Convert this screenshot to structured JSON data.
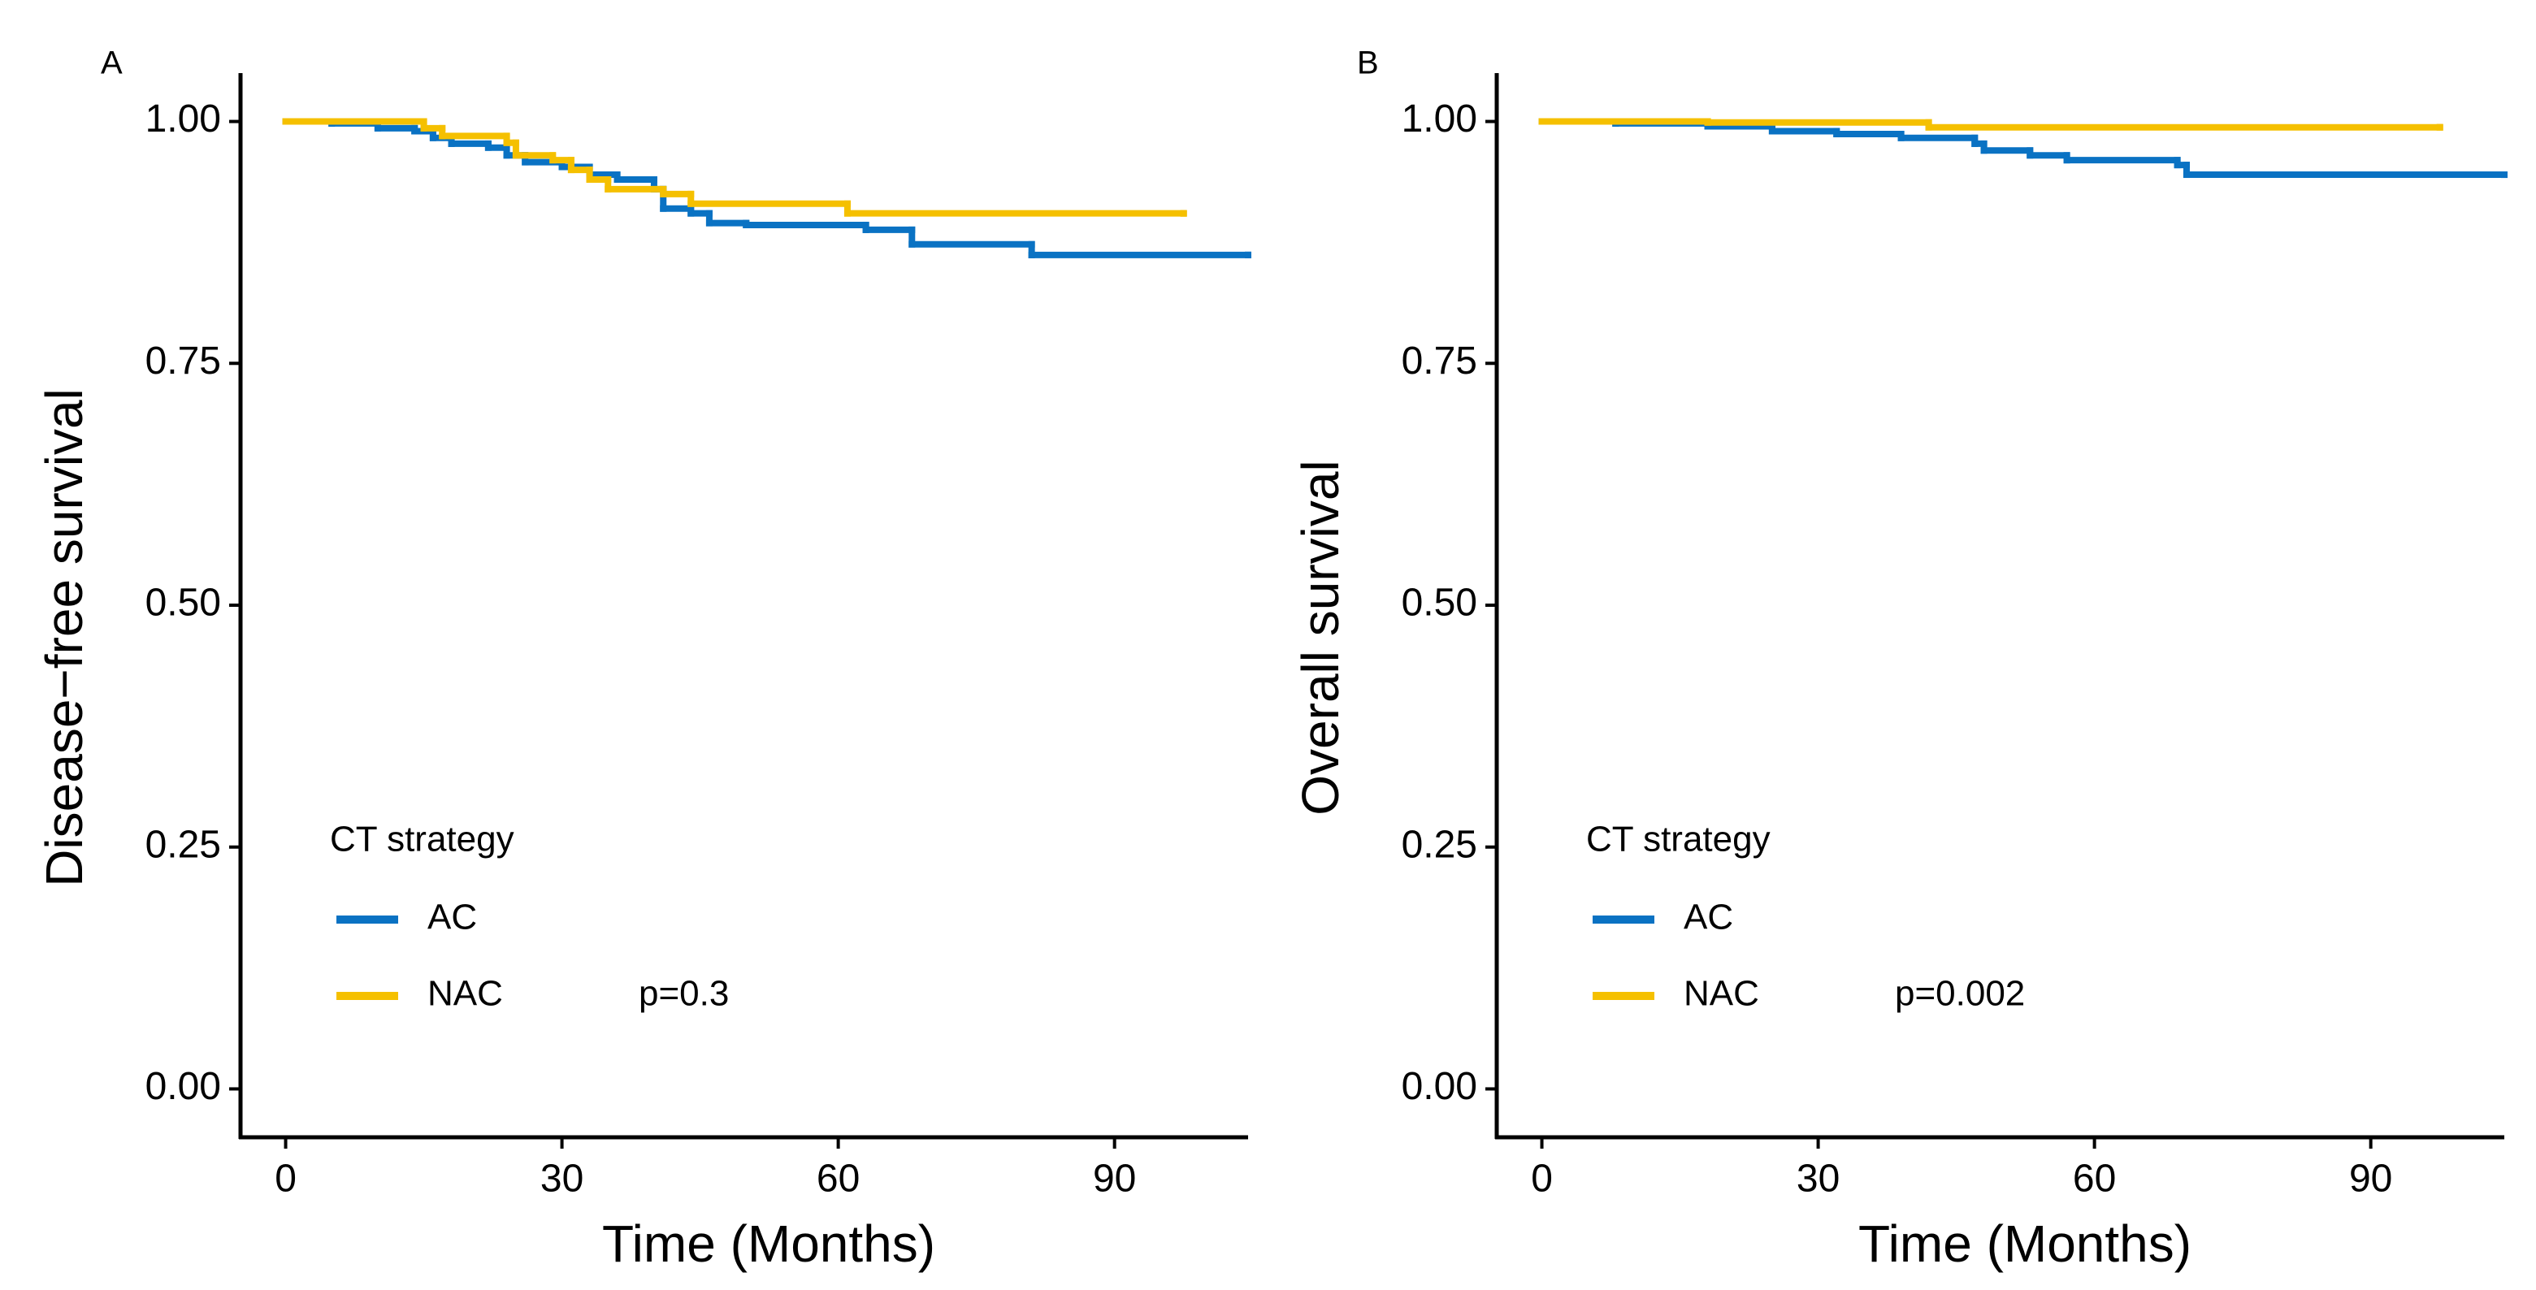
{
  "chart_data": [
    {
      "type": "step",
      "panel_label": "A",
      "y_label": "Disease−free survival",
      "x_label": "Time (Months)",
      "legend_title": "CT strategy",
      "legend": "bottom-left",
      "annotation": "p=0.3",
      "xlim": [
        -4.9,
        104.5
      ],
      "ylim": [
        -0.05,
        1.05
      ],
      "xticks": [
        0,
        30,
        60,
        90
      ],
      "yticks": [
        {
          "value": 0,
          "label": "0.00"
        },
        {
          "value": 0.25,
          "label": "0.25"
        },
        {
          "value": 0.5,
          "label": "0.50"
        },
        {
          "value": 0.75,
          "label": "0.75"
        },
        {
          "value": 1,
          "label": "1.00"
        }
      ],
      "series": [
        {
          "name": "AC",
          "color": "#0a72c3",
          "x": [
            0,
            5,
            10,
            14,
            16,
            18,
            22,
            24,
            26,
            30,
            33,
            36,
            40,
            41,
            44,
            46,
            50,
            63,
            68,
            81,
            104.5
          ],
          "values": [
            1.0,
            0.998,
            0.993,
            0.99,
            0.983,
            0.977,
            0.973,
            0.965,
            0.958,
            0.953,
            0.945,
            0.94,
            0.93,
            0.91,
            0.905,
            0.895,
            0.893,
            0.888,
            0.873,
            0.862,
            0.862
          ]
        },
        {
          "name": "NAC",
          "color": "#f5c000",
          "x": [
            0,
            15,
            17,
            24,
            25,
            29,
            31,
            33,
            35,
            41,
            44,
            61,
            97.5
          ],
          "values": [
            1.0,
            0.993,
            0.985,
            0.978,
            0.965,
            0.96,
            0.95,
            0.94,
            0.93,
            0.925,
            0.915,
            0.905,
            0.905
          ]
        }
      ]
    },
    {
      "type": "step",
      "panel_label": "B",
      "y_label": "Overall survival",
      "x_label": "Time (Months)",
      "legend_title": "CT strategy",
      "legend": "bottom-left",
      "annotation": "p=0.002",
      "xlim": [
        -4.9,
        104.5
      ],
      "ylim": [
        -0.05,
        1.05
      ],
      "xticks": [
        0,
        30,
        60,
        90
      ],
      "yticks": [
        {
          "value": 0,
          "label": "0.00"
        },
        {
          "value": 0.25,
          "label": "0.25"
        },
        {
          "value": 0.5,
          "label": "0.50"
        },
        {
          "value": 0.75,
          "label": "0.75"
        },
        {
          "value": 1,
          "label": "1.00"
        }
      ],
      "series": [
        {
          "name": "AC",
          "color": "#0a72c3",
          "x": [
            0,
            8,
            18,
            25,
            32,
            39,
            47,
            48,
            53,
            57,
            69,
            70,
            104.5
          ],
          "values": [
            1.0,
            0.998,
            0.995,
            0.99,
            0.987,
            0.983,
            0.977,
            0.97,
            0.965,
            0.96,
            0.955,
            0.945,
            0.945
          ]
        },
        {
          "name": "NAC",
          "color": "#f5c000",
          "x": [
            0,
            18,
            42,
            97.5
          ],
          "values": [
            1.0,
            0.999,
            0.994,
            0.994
          ]
        }
      ]
    }
  ]
}
